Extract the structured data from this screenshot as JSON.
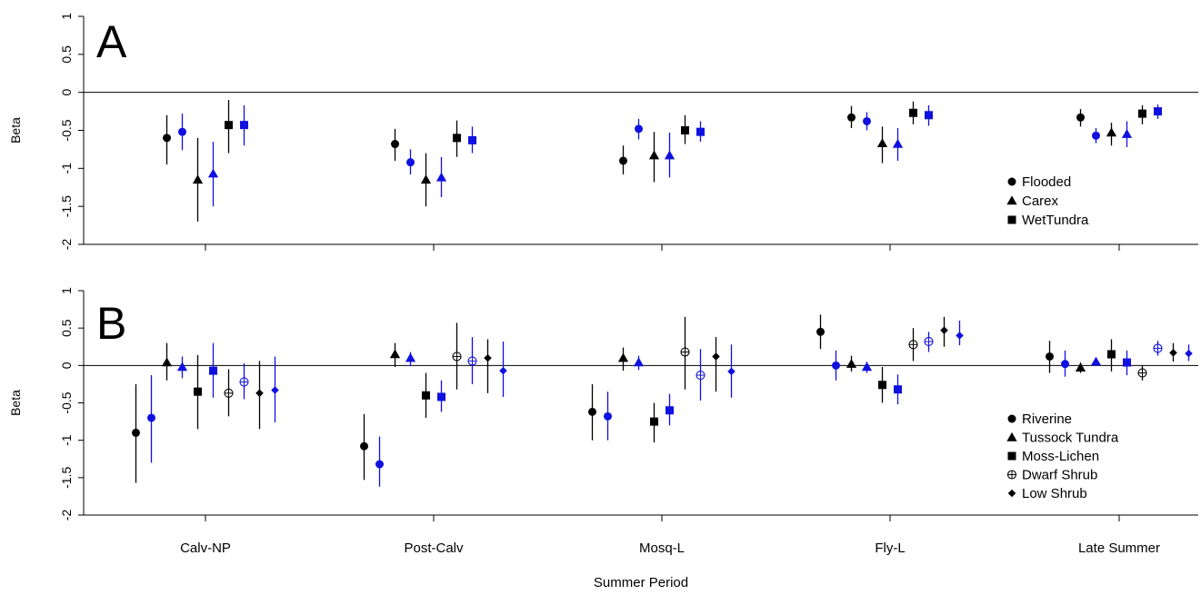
{
  "figure": {
    "xlabel": "Summer Period",
    "categories": [
      "Calv-NP",
      "Post-Calv",
      "Mosq-L",
      "Fly-L",
      "Late Summer"
    ]
  },
  "colors": {
    "black": "#000000",
    "blue": "#1010e0"
  },
  "chart_data": [
    {
      "panel": "A",
      "type": "scatter",
      "subtype": "point-range",
      "ylabel": "Beta",
      "ylim": [
        -2,
        1
      ],
      "yticks": [
        1,
        0.5,
        0,
        -0.5,
        -1,
        -1.5,
        -2
      ],
      "ytick_labels": [
        "1",
        "0.5",
        "0",
        "-0.5",
        "-1",
        "-1.5",
        "-2"
      ],
      "reference_line": 0,
      "legend_position": "bottom-right",
      "categories": [
        "Calv-NP",
        "Post-Calv",
        "Mosq-L",
        "Fly-L",
        "Late Summer"
      ],
      "series": [
        {
          "name": "Flooded",
          "marker": "circle",
          "color": "black",
          "estimate": [
            -0.6,
            -0.68,
            -0.9,
            -0.33,
            -0.33
          ],
          "lower": [
            -0.95,
            -0.9,
            -1.08,
            -0.47,
            -0.45
          ],
          "upper": [
            -0.3,
            -0.48,
            -0.7,
            -0.18,
            -0.22
          ]
        },
        {
          "name": "Flooded",
          "marker": "circle",
          "color": "blue",
          "estimate": [
            -0.52,
            -0.92,
            -0.48,
            -0.38,
            -0.57
          ],
          "lower": [
            -0.76,
            -1.08,
            -0.62,
            -0.5,
            -0.67
          ],
          "upper": [
            -0.28,
            -0.75,
            -0.35,
            -0.26,
            -0.47
          ]
        },
        {
          "name": "Carex",
          "marker": "triangle",
          "color": "black",
          "estimate": [
            -1.15,
            -1.15,
            -0.83,
            -0.67,
            -0.53
          ],
          "lower": [
            -1.7,
            -1.5,
            -1.18,
            -0.93,
            -0.7
          ],
          "upper": [
            -0.6,
            -0.8,
            -0.52,
            -0.45,
            -0.4
          ]
        },
        {
          "name": "Carex",
          "marker": "triangle",
          "color": "blue",
          "estimate": [
            -1.07,
            -1.12,
            -0.83,
            -0.68,
            -0.55
          ],
          "lower": [
            -1.5,
            -1.38,
            -1.12,
            -0.9,
            -0.72
          ],
          "upper": [
            -0.65,
            -0.85,
            -0.53,
            -0.47,
            -0.38
          ]
        },
        {
          "name": "WetTundra",
          "marker": "square",
          "color": "black",
          "estimate": [
            -0.43,
            -0.6,
            -0.5,
            -0.27,
            -0.28
          ],
          "lower": [
            -0.8,
            -0.85,
            -0.68,
            -0.42,
            -0.42
          ],
          "upper": [
            -0.1,
            -0.37,
            -0.3,
            -0.12,
            -0.17
          ]
        },
        {
          "name": "WetTundra",
          "marker": "square",
          "color": "blue",
          "estimate": [
            -0.43,
            -0.63,
            -0.52,
            -0.3,
            -0.25
          ],
          "lower": [
            -0.7,
            -0.8,
            -0.65,
            -0.44,
            -0.35
          ],
          "upper": [
            -0.17,
            -0.45,
            -0.38,
            -0.17,
            -0.16
          ]
        }
      ],
      "legend": [
        {
          "label": "Flooded",
          "marker": "circle"
        },
        {
          "label": "Carex",
          "marker": "triangle"
        },
        {
          "label": "WetTundra",
          "marker": "square"
        }
      ]
    },
    {
      "panel": "B",
      "type": "scatter",
      "subtype": "point-range",
      "ylabel": "Beta",
      "ylim": [
        -2,
        1
      ],
      "yticks": [
        1,
        0.5,
        0,
        -0.5,
        -1,
        -1.5,
        -2
      ],
      "ytick_labels": [
        "1",
        "0.5",
        "0",
        "-0.5",
        "-1",
        "-1.5",
        "-2"
      ],
      "reference_line": 0,
      "legend_position": "bottom-right",
      "categories": [
        "Calv-NP",
        "Post-Calv",
        "Mosq-L",
        "Fly-L",
        "Late Summer"
      ],
      "series": [
        {
          "name": "Riverine",
          "marker": "circle",
          "color": "black",
          "estimate": [
            -0.9,
            -1.08,
            -0.62,
            0.45,
            0.12
          ],
          "lower": [
            -1.57,
            -1.53,
            -1.0,
            0.22,
            -0.1
          ],
          "upper": [
            -0.25,
            -0.65,
            -0.25,
            0.68,
            0.33
          ]
        },
        {
          "name": "Riverine",
          "marker": "circle",
          "color": "blue",
          "estimate": [
            -0.7,
            -1.32,
            -0.68,
            0.0,
            0.02
          ],
          "lower": [
            -1.3,
            -1.62,
            -1.0,
            -0.2,
            -0.15
          ],
          "upper": [
            -0.13,
            -0.95,
            -0.35,
            0.2,
            0.2
          ]
        },
        {
          "name": "Tussock Tundra",
          "marker": "triangle",
          "color": "black",
          "estimate": [
            0.04,
            0.15,
            0.1,
            0.02,
            -0.03
          ],
          "lower": [
            -0.2,
            -0.02,
            -0.07,
            -0.08,
            -0.1
          ],
          "upper": [
            0.3,
            0.3,
            0.24,
            0.13,
            0.04
          ]
        },
        {
          "name": "Tussock Tundra",
          "marker": "triangle",
          "color": "blue",
          "estimate": [
            -0.02,
            0.1,
            0.04,
            -0.02,
            0.05
          ],
          "lower": [
            -0.17,
            -0.01,
            -0.06,
            -0.1,
            0.0
          ],
          "upper": [
            0.12,
            0.18,
            0.13,
            0.05,
            0.1
          ]
        },
        {
          "name": "Moss-Lichen",
          "marker": "square",
          "color": "black",
          "estimate": [
            -0.35,
            -0.4,
            -0.75,
            -0.26,
            0.15
          ],
          "lower": [
            -0.85,
            -0.7,
            -1.03,
            -0.5,
            -0.08
          ],
          "upper": [
            0.14,
            -0.1,
            -0.5,
            -0.02,
            0.35
          ]
        },
        {
          "name": "Moss-Lichen",
          "marker": "square",
          "color": "blue",
          "estimate": [
            -0.07,
            -0.42,
            -0.6,
            -0.32,
            0.04
          ],
          "lower": [
            -0.43,
            -0.62,
            -0.8,
            -0.52,
            -0.13
          ],
          "upper": [
            0.3,
            -0.2,
            -0.38,
            -0.12,
            0.2
          ]
        },
        {
          "name": "Dwarf Shrub",
          "marker": "circle-plus",
          "color": "black",
          "estimate": [
            -0.37,
            0.12,
            0.18,
            0.28,
            -0.1
          ],
          "lower": [
            -0.68,
            -0.32,
            -0.32,
            0.06,
            -0.2
          ],
          "upper": [
            -0.05,
            0.57,
            0.65,
            0.5,
            0.0
          ]
        },
        {
          "name": "Dwarf Shrub",
          "marker": "circle-plus",
          "color": "blue",
          "estimate": [
            -0.22,
            0.06,
            -0.13,
            0.32,
            0.23
          ],
          "lower": [
            -0.45,
            -0.25,
            -0.47,
            0.18,
            0.13
          ],
          "upper": [
            0.03,
            0.38,
            0.22,
            0.45,
            0.33
          ]
        },
        {
          "name": "Low Shrub",
          "marker": "diamond",
          "color": "black",
          "estimate": [
            -0.37,
            0.1,
            0.12,
            0.47,
            0.17
          ],
          "lower": [
            -0.85,
            -0.37,
            -0.35,
            0.25,
            0.05
          ],
          "upper": [
            0.06,
            0.35,
            0.38,
            0.65,
            0.3
          ]
        },
        {
          "name": "Low Shrub",
          "marker": "diamond",
          "color": "blue",
          "estimate": [
            -0.33,
            -0.07,
            -0.08,
            0.4,
            0.16
          ],
          "lower": [
            -0.76,
            -0.42,
            -0.43,
            0.27,
            0.06
          ],
          "upper": [
            0.12,
            0.32,
            0.28,
            0.6,
            0.28
          ]
        }
      ],
      "legend": [
        {
          "label": "Riverine",
          "marker": "circle"
        },
        {
          "label": "Tussock Tundra",
          "marker": "triangle"
        },
        {
          "label": "Moss-Lichen",
          "marker": "square"
        },
        {
          "label": "Dwarf Shrub",
          "marker": "circle-plus"
        },
        {
          "label": "Low Shrub",
          "marker": "diamond"
        }
      ]
    }
  ]
}
